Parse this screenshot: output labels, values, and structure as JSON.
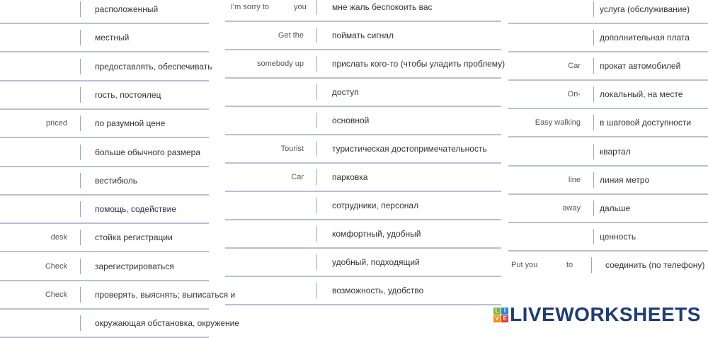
{
  "columns": [
    {
      "rows": [
        {
          "en": "",
          "ru": "расположенный"
        },
        {
          "en": "",
          "ru": "местный"
        },
        {
          "en": "",
          "ru": "предоставлять, обеспечивать"
        },
        {
          "en": "",
          "ru": "гость, постоялец"
        },
        {
          "en": "priced",
          "ru": "по разумной цене"
        },
        {
          "en": "",
          "ru": "больше обычного размера"
        },
        {
          "en": "",
          "ru": "вестибюль"
        },
        {
          "en": "",
          "ru": "помощь, содействие"
        },
        {
          "en": "desk",
          "ru": "стойка регистрации"
        },
        {
          "en": "Check",
          "ru": "зарегистрироваться"
        },
        {
          "en": "Check",
          "ru": "проверять, выяснять; выписаться и"
        },
        {
          "en": "",
          "ru": "окружающая обстановка, окружение"
        }
      ]
    },
    {
      "rows": [
        {
          "en": "I'm sorry to",
          "en2": "you",
          "ru": "мне жаль беспокоить вас"
        },
        {
          "en": "Get the",
          "ru": "поймать сигнал"
        },
        {
          "en": "somebody up",
          "ru": "прислать кого-то (чтобы уладить проблему)"
        },
        {
          "en": "",
          "ru": "доступ"
        },
        {
          "en": "",
          "ru": "основной"
        },
        {
          "en": "Tourist",
          "ru": "туристическая достопримечательность"
        },
        {
          "en": "Car",
          "ru": "парковка"
        },
        {
          "en": "",
          "ru": "сотрудники, персонал"
        },
        {
          "en": "",
          "ru": "комфортный, удобный"
        },
        {
          "en": "",
          "ru": "удобный, подходящий"
        },
        {
          "en": "",
          "ru": "возможность, удобство"
        }
      ]
    },
    {
      "rows": [
        {
          "en": "",
          "ru": "услуга (обслуживание)"
        },
        {
          "en": "",
          "ru": "дополнительная плата"
        },
        {
          "en": "Car",
          "ru": "прокат автомобилей"
        },
        {
          "en": "On-",
          "ru": "локальный, на месте"
        },
        {
          "en": "Easy walking",
          "ru": "в шаговой доступности"
        },
        {
          "en": "",
          "ru": "квартал"
        },
        {
          "en": "line",
          "ru": "линия метро"
        },
        {
          "en": "away",
          "ru": "дальше"
        },
        {
          "en": "",
          "ru": "ценность"
        },
        {
          "en": "Put you",
          "en2": "to",
          "ru": "соединить (по телефону)"
        }
      ]
    }
  ],
  "logo": {
    "text": "LIVEWORKSHEETS",
    "tiles": [
      "L",
      "I",
      "V",
      "E"
    ],
    "color": "#1f3d73"
  }
}
